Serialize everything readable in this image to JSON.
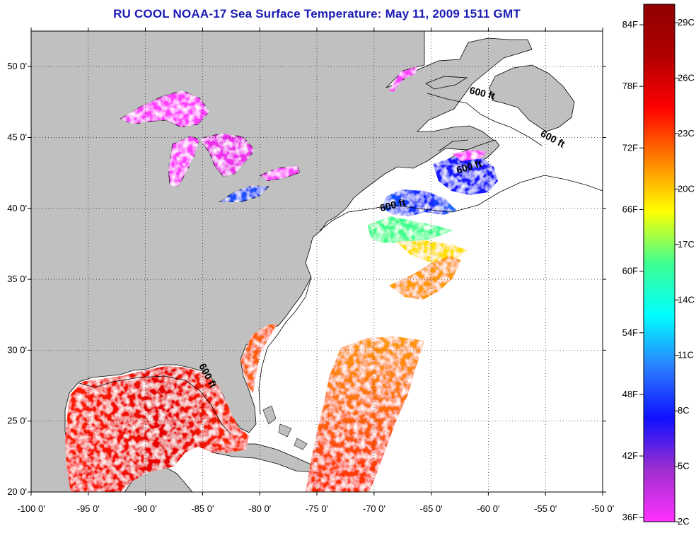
{
  "title": "RU COOL  NOAA-17  Sea Surface Temperature:  May 11, 2009 1511 GMT",
  "map": {
    "lon_range": [
      -100,
      -50
    ],
    "lat_range": [
      20,
      52.5
    ],
    "lon_ticks": [
      {
        "value": -100,
        "label": "-100 0'"
      },
      {
        "value": -95,
        "label": "-95 0'"
      },
      {
        "value": -90,
        "label": "-90 0'"
      },
      {
        "value": -85,
        "label": "-85 0'"
      },
      {
        "value": -80,
        "label": "-80 0'"
      },
      {
        "value": -75,
        "label": "-75 0'"
      },
      {
        "value": -70,
        "label": "-70 0'"
      },
      {
        "value": -65,
        "label": "-65 0'"
      },
      {
        "value": -60,
        "label": "-60 0'"
      },
      {
        "value": -55,
        "label": "-55 0'"
      },
      {
        "value": -50,
        "label": "-50 0'"
      }
    ],
    "lat_ticks": [
      {
        "value": 20,
        "label": "20 0'"
      },
      {
        "value": 25,
        "label": "25 0'"
      },
      {
        "value": 30,
        "label": "30 0'"
      },
      {
        "value": 35,
        "label": "35 0'"
      },
      {
        "value": 40,
        "label": "40 0'"
      },
      {
        "value": 45,
        "label": "45 0'"
      },
      {
        "value": 50,
        "label": "50 0'"
      }
    ],
    "grid": "dotted",
    "land_color": "#c0c0c0",
    "water_color": "#ffffff",
    "isobath_labels": [
      {
        "text": "600 ft",
        "lon": -60.6,
        "lat": 47.9,
        "angle": 14
      },
      {
        "text": "600 ft",
        "lon": -54.5,
        "lat": 44.7,
        "angle": 28
      },
      {
        "text": "600 ft",
        "lon": -61.6,
        "lat": 42.7,
        "angle": -16
      },
      {
        "text": "600 ft",
        "lon": -68.3,
        "lat": 40.0,
        "angle": -14
      },
      {
        "text": "600 ft",
        "lon": -84.8,
        "lat": 28.1,
        "angle": 62
      }
    ]
  },
  "colorbar": {
    "f_labels": [
      {
        "value": 84,
        "label": "84F"
      },
      {
        "value": 78,
        "label": "78F"
      },
      {
        "value": 72,
        "label": "72F"
      },
      {
        "value": 66,
        "label": "66F"
      },
      {
        "value": 60,
        "label": "60F"
      },
      {
        "value": 54,
        "label": "54F"
      },
      {
        "value": 48,
        "label": "48F"
      },
      {
        "value": 42,
        "label": "42F"
      },
      {
        "value": 36,
        "label": "36F"
      }
    ],
    "c_labels": [
      {
        "value": 29,
        "label": "29C"
      },
      {
        "value": 26,
        "label": "26C"
      },
      {
        "value": 23,
        "label": "23C"
      },
      {
        "value": 20,
        "label": "20C"
      },
      {
        "value": 17,
        "label": "17C"
      },
      {
        "value": 14,
        "label": "14C"
      },
      {
        "value": 11,
        "label": "11C"
      },
      {
        "value": 8,
        "label": "8C"
      },
      {
        "value": 5,
        "label": "5C"
      },
      {
        "value": 2,
        "label": "2C"
      }
    ],
    "range_c": [
      2,
      30
    ],
    "stops": [
      "#ff30ff",
      "#9f2fcf",
      "#1010ff",
      "#2a80ff",
      "#00ffff",
      "#40ff90",
      "#ffff00",
      "#ff8000",
      "#ff0000",
      "#b00000",
      "#900000"
    ]
  }
}
